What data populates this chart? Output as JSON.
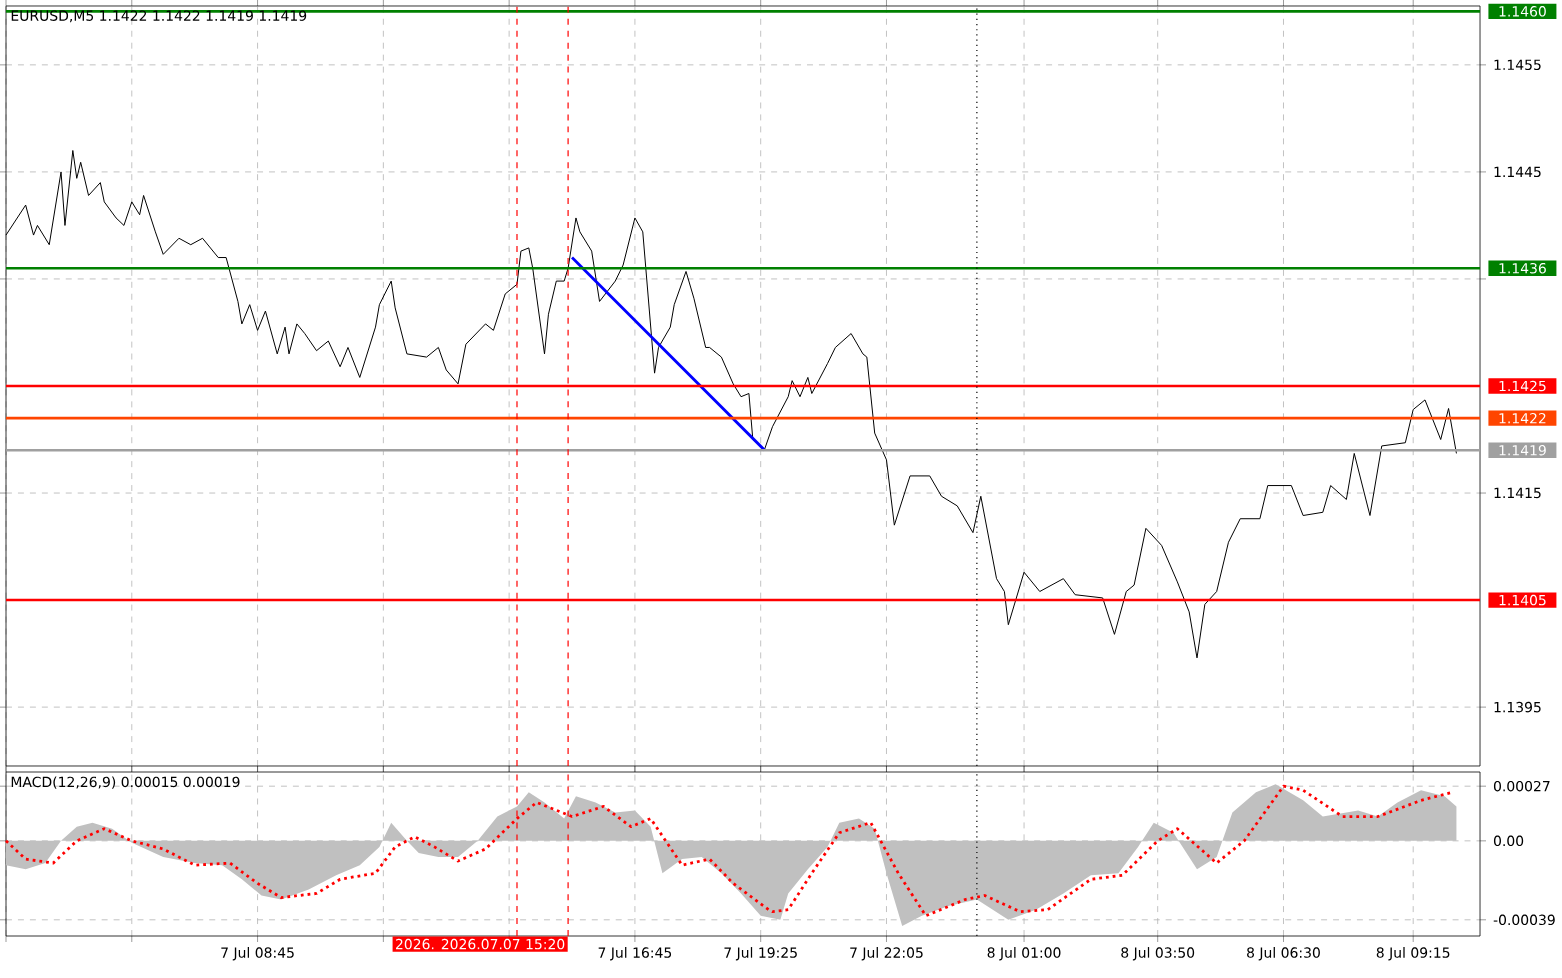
{
  "chart_data": [
    {
      "type": "line",
      "title": "EURUSD,M5 1.1422 1.1422 1.1419 1.1419",
      "xlim": [
        "2026-07-07T03:25",
        "2026-07-08T10:40"
      ],
      "ylim": [
        1.13895,
        1.14605
      ],
      "xticks": [
        {
          "value": "2026-07-07T03:25",
          "label": null
        },
        {
          "value": "2026-07-07T06:05",
          "label": null
        },
        {
          "value": "2026-07-07T08:45",
          "label": null
        },
        {
          "value": "2026-07-07T11:25",
          "label": null
        },
        {
          "value": "2026-07-07T14:05",
          "label": null
        },
        {
          "value": "2026-07-07T16:45",
          "label": null
        },
        {
          "value": "2026-07-07T19:25",
          "label": null
        },
        {
          "value": "2026-07-07T22:05",
          "label": null
        },
        {
          "value": "2026-07-08T01:00",
          "label": null
        },
        {
          "value": "2026-07-08T03:50",
          "label": null
        },
        {
          "value": "2026-07-08T06:30",
          "label": null
        },
        {
          "value": "2026-07-08T09:15",
          "label": null
        }
      ],
      "yticks": [
        1.1395,
        1.1415,
        {
          "value": 1.1435,
          "label": null
        },
        1.1445,
        1.1455
      ],
      "tick_labels": "y",
      "grid": true,
      "series": [
        {
          "color": "#000000",
          "x": [
            "2026-07-07T03:25",
            "2026-07-07T03:50",
            "2026-07-07T04:00",
            "2026-07-07T04:05",
            "2026-07-07T04:20",
            "2026-07-07T04:35",
            "2026-07-07T04:40",
            "2026-07-07T04:50",
            "2026-07-07T04:55",
            "2026-07-07T05:00",
            "2026-07-07T05:10",
            "2026-07-07T05:25",
            "2026-07-07T05:30",
            "2026-07-07T05:45",
            "2026-07-07T05:55",
            "2026-07-07T06:05",
            "2026-07-07T06:15",
            "2026-07-07T06:20",
            "2026-07-07T06:35",
            "2026-07-07T06:45",
            "2026-07-07T07:05",
            "2026-07-07T07:20",
            "2026-07-07T07:35",
            "2026-07-07T07:55",
            "2026-07-07T08:05",
            "2026-07-07T08:20",
            "2026-07-07T08:25",
            "2026-07-07T08:35",
            "2026-07-07T08:45",
            "2026-07-07T08:55",
            "2026-07-07T09:10",
            "2026-07-07T09:20",
            "2026-07-07T09:25",
            "2026-07-07T09:35",
            "2026-07-07T09:45",
            "2026-07-07T10:00",
            "2026-07-07T10:15",
            "2026-07-07T10:30",
            "2026-07-07T10:40",
            "2026-07-07T10:55",
            "2026-07-07T11:15",
            "2026-07-07T11:20",
            "2026-07-07T11:35",
            "2026-07-07T11:40",
            "2026-07-07T11:55",
            "2026-07-07T12:20",
            "2026-07-07T12:35",
            "2026-07-07T12:45",
            "2026-07-07T13:00",
            "2026-07-07T13:10",
            "2026-07-07T13:35",
            "2026-07-07T13:45",
            "2026-07-07T14:00",
            "2026-07-07T14:15",
            "2026-07-07T14:20",
            "2026-07-07T14:30",
            "2026-07-07T14:35",
            "2026-07-07T14:50",
            "2026-07-07T14:55",
            "2026-07-07T15:05",
            "2026-07-07T15:15",
            "2026-07-07T15:20",
            "2026-07-07T15:30",
            "2026-07-07T15:35",
            "2026-07-07T15:50",
            "2026-07-07T16:00",
            "2026-07-07T16:20",
            "2026-07-07T16:30",
            "2026-07-07T16:45",
            "2026-07-07T16:55",
            "2026-07-07T17:10",
            "2026-07-07T17:15",
            "2026-07-07T17:30",
            "2026-07-07T17:35",
            "2026-07-07T17:50",
            "2026-07-07T18:00",
            "2026-07-07T18:15",
            "2026-07-07T18:20",
            "2026-07-07T18:35",
            "2026-07-07T18:50",
            "2026-07-07T19:00",
            "2026-07-07T19:10",
            "2026-07-07T19:15",
            "2026-07-07T19:30",
            "2026-07-07T19:40",
            "2026-07-07T20:00",
            "2026-07-07T20:05",
            "2026-07-07T20:15",
            "2026-07-07T20:25",
            "2026-07-07T20:30",
            "2026-07-07T20:50",
            "2026-07-07T21:00",
            "2026-07-07T21:20",
            "2026-07-07T21:35",
            "2026-07-07T21:40",
            "2026-07-07T21:50",
            "2026-07-07T22:05",
            "2026-07-07T22:15",
            "2026-07-07T22:35",
            "2026-07-07T23:00",
            "2026-07-07T23:15",
            "2026-07-07T23:35",
            "2026-07-07T23:55",
            "2026-07-08T00:05",
            "2026-07-08T00:25",
            "2026-07-08T00:35",
            "2026-07-08T00:40",
            "2026-07-08T01:00",
            "2026-07-08T01:20",
            "2026-07-08T01:50",
            "2026-07-08T02:05",
            "2026-07-08T02:40",
            "2026-07-08T02:55",
            "2026-07-08T03:10",
            "2026-07-08T03:20",
            "2026-07-08T03:35",
            "2026-07-08T03:55",
            "2026-07-08T04:15",
            "2026-07-08T04:30",
            "2026-07-08T04:40",
            "2026-07-08T04:50",
            "2026-07-08T05:05",
            "2026-07-08T05:20",
            "2026-07-08T05:35",
            "2026-07-08T06:00",
            "2026-07-08T06:10",
            "2026-07-08T06:40",
            "2026-07-08T06:55",
            "2026-07-08T07:20",
            "2026-07-08T07:30",
            "2026-07-08T07:50",
            "2026-07-08T08:00",
            "2026-07-08T08:20",
            "2026-07-08T08:35",
            "2026-07-08T09:05",
            "2026-07-08T09:15",
            "2026-07-08T09:30",
            "2026-07-08T09:50",
            "2026-07-08T10:00",
            "2026-07-08T10:10"
          ],
          "values": [
            1.14391,
            1.14419,
            1.14391,
            1.144,
            1.14382,
            1.1445,
            1.144,
            1.1447,
            1.14444,
            1.14459,
            1.14428,
            1.1444,
            1.14422,
            1.14407,
            1.144,
            1.14422,
            1.1441,
            1.14428,
            1.14394,
            1.14373,
            1.14388,
            1.14382,
            1.14388,
            1.1437,
            1.1437,
            1.14329,
            1.14308,
            1.14326,
            1.14302,
            1.1432,
            1.1428,
            1.14305,
            1.1428,
            1.14308,
            1.14299,
            1.14283,
            1.14292,
            1.14268,
            1.14286,
            1.14258,
            1.14305,
            1.14326,
            1.14348,
            1.14323,
            1.1428,
            1.14277,
            1.14286,
            1.14265,
            1.14252,
            1.14289,
            1.14308,
            1.14302,
            1.14336,
            1.14345,
            1.14376,
            1.14379,
            1.1436,
            1.1428,
            1.14317,
            1.14348,
            1.14348,
            1.1436,
            1.14407,
            1.14394,
            1.14376,
            1.14329,
            1.14348,
            1.14363,
            1.14407,
            1.14394,
            1.14262,
            1.14286,
            1.14305,
            1.14326,
            1.14357,
            1.14332,
            1.14286,
            1.14286,
            1.14277,
            1.14252,
            1.1424,
            1.14243,
            1.142,
            1.14191,
            1.14212,
            1.1424,
            1.14255,
            1.1424,
            1.14258,
            1.14243,
            1.14271,
            1.14286,
            1.14299,
            1.1428,
            1.14277,
            1.14206,
            1.14181,
            1.1412,
            1.14166,
            1.14166,
            1.14147,
            1.14138,
            1.14113,
            1.14147,
            1.1407,
            1.14058,
            1.14027,
            1.14076,
            1.14058,
            1.1407,
            1.14055,
            1.14052,
            1.14018,
            1.14058,
            1.14064,
            1.14117,
            1.14101,
            1.14067,
            1.14039,
            1.13996,
            1.14046,
            1.14058,
            1.14104,
            1.14126,
            1.14126,
            1.14157,
            1.14157,
            1.14129,
            1.14132,
            1.14157,
            1.14144,
            1.14187,
            1.14129,
            1.14194,
            1.14197,
            1.14228,
            1.14237,
            1.142,
            1.14229,
            1.14187
          ]
        },
        {
          "type": "line",
          "color": "#0000ff",
          "x": [
            "2026-07-07T15:25",
            "2026-07-07T19:30"
          ],
          "values": [
            1.1437,
            1.1419
          ]
        }
      ],
      "ref_lines": [
        {
          "axis": "y",
          "value": 1.146,
          "label": "1.1460",
          "color": "#008000"
        },
        {
          "axis": "y",
          "value": 1.1436,
          "label": "1.1436",
          "color": "#008000"
        },
        {
          "axis": "y",
          "value": 1.1425,
          "label": "1.1425",
          "color": "#ff0000"
        },
        {
          "axis": "y",
          "value": 1.1422,
          "label": "1.1422",
          "color": "#ff4500"
        },
        {
          "axis": "y",
          "value": 1.1419,
          "label": "1.1419",
          "color": "#a0a0a0"
        },
        {
          "axis": "y",
          "value": 1.1405,
          "label": "1.1405",
          "color": "#ff0000"
        },
        {
          "axis": "x",
          "value": "2026-07-07T14:15",
          "color": "#ff0000",
          "line_style": "dashed"
        },
        {
          "axis": "x",
          "value": "2026-07-07T15:20",
          "color": "#ff0000",
          "line_style": "dashed"
        },
        {
          "axis": "x",
          "value": "2026-07-08T00:00",
          "color": "#000000",
          "line_style": "dotted"
        }
      ]
    },
    {
      "type": "area",
      "title": "MACD(12,26,9) 0.00015 0.00019",
      "xlim": [
        "2026-07-07T03:25",
        "2026-07-08T10:40"
      ],
      "ylim": [
        -0.00047,
        0.00034
      ],
      "xticks": [
        {
          "value": "2026-07-07T03:25",
          "label": null
        },
        {
          "value": "2026-07-07T06:05",
          "label": null
        },
        {
          "value": "2026-07-07T08:45",
          "label": "7 Jul 08:45"
        },
        {
          "value": "2026-07-07T11:25",
          "label": null
        },
        {
          "value": "2026-07-07T14:05",
          "label": null
        },
        {
          "value": "2026-07-07T16:45",
          "label": "7 Jul 16:45"
        },
        {
          "value": "2026-07-07T19:25",
          "label": "7 Jul 19:25"
        },
        {
          "value": "2026-07-07T22:05",
          "label": "7 Jul 22:05"
        },
        {
          "value": "2026-07-08T01:00",
          "label": "8 Jul 01:00"
        },
        {
          "value": "2026-07-08T03:50",
          "label": "8 Jul 03:50"
        },
        {
          "value": "2026-07-08T06:30",
          "label": "8 Jul 06:30"
        },
        {
          "value": "2026-07-08T09:15",
          "label": "8 Jul 09:15"
        }
      ],
      "yticks": [
        -0.00039,
        {
          "value": 0,
          "label": "0.00"
        },
        0.00027
      ],
      "grid": true,
      "series": [
        {
          "type": "area",
          "color": "#c0c0c0",
          "x": [
            "2026-07-07T03:25",
            "2026-07-07T03:50",
            "2026-07-07T04:15",
            "2026-07-07T04:35",
            "2026-07-07T04:55",
            "2026-07-07T05:15",
            "2026-07-07T05:40",
            "2026-07-07T06:05",
            "2026-07-07T06:45",
            "2026-07-07T07:25",
            "2026-07-07T08:00",
            "2026-07-07T08:25",
            "2026-07-07T08:50",
            "2026-07-07T09:15",
            "2026-07-07T09:50",
            "2026-07-07T10:25",
            "2026-07-07T10:55",
            "2026-07-07T11:20",
            "2026-07-07T11:35",
            "2026-07-07T11:55",
            "2026-07-07T12:10",
            "2026-07-07T12:35",
            "2026-07-07T13:00",
            "2026-07-07T13:25",
            "2026-07-07T13:50",
            "2026-07-07T14:15",
            "2026-07-07T14:30",
            "2026-07-07T14:50",
            "2026-07-07T15:15",
            "2026-07-07T15:30",
            "2026-07-07T15:55",
            "2026-07-07T16:20",
            "2026-07-07T16:45",
            "2026-07-07T17:05",
            "2026-07-07T17:20",
            "2026-07-07T17:45",
            "2026-07-07T18:10",
            "2026-07-07T18:35",
            "2026-07-07T19:00",
            "2026-07-07T19:25",
            "2026-07-07T19:50",
            "2026-07-07T20:00",
            "2026-07-07T20:25",
            "2026-07-07T20:50",
            "2026-07-07T21:05",
            "2026-07-07T21:30",
            "2026-07-07T21:50",
            "2026-07-07T22:05",
            "2026-07-07T22:25",
            "2026-07-07T22:50",
            "2026-07-07T23:25",
            "2026-07-08T00:00",
            "2026-07-08T00:40",
            "2026-07-08T01:15",
            "2026-07-08T01:50",
            "2026-07-08T02:25",
            "2026-07-08T03:00",
            "2026-07-08T03:25",
            "2026-07-08T03:45",
            "2026-07-08T04:10",
            "2026-07-08T04:40",
            "2026-07-08T05:05",
            "2026-07-08T05:25",
            "2026-07-08T05:55",
            "2026-07-08T06:20",
            "2026-07-08T06:55",
            "2026-07-08T07:20",
            "2026-07-08T08:05",
            "2026-07-08T08:30",
            "2026-07-08T08:55",
            "2026-07-08T09:25",
            "2026-07-08T09:55",
            "2026-07-08T10:10"
          ],
          "values": [
            -0.00012,
            -0.00014,
            -0.00011,
            0,
            7e-05,
            9e-05,
            6e-05,
            -1e-05,
            -8e-05,
            -0.00011,
            -0.00012,
            -0.00019,
            -0.00027,
            -0.00029,
            -0.00024,
            -0.00017,
            -0.00012,
            -3e-05,
            9e-05,
            0,
            -6e-05,
            -8e-05,
            -8e-05,
            0,
            0.00012,
            0.00017,
            0.00024,
            0.00019,
            0.00011,
            0.00022,
            0.00019,
            0.00014,
            0.00015,
            7e-05,
            -0.00016,
            -9e-05,
            -8e-05,
            -0.00016,
            -0.00026,
            -0.00037,
            -0.00039,
            -0.00026,
            -0.00014,
            -3e-05,
            9e-05,
            0.00011,
            6e-05,
            -0.00016,
            -0.00042,
            -0.00037,
            -0.00032,
            -0.00029,
            -0.00039,
            -0.00034,
            -0.00026,
            -0.00017,
            -0.00016,
            -3e-05,
            9e-05,
            4e-05,
            -0.00014,
            -8e-05,
            0.00014,
            0.00024,
            0.00028,
            0.0002,
            0.00012,
            0.00015,
            0.00012,
            0.00019,
            0.00025,
            0.00022,
            0.00017
          ]
        },
        {
          "type": "line",
          "color": "#ff0000",
          "line_style": "dotted",
          "x": [
            "2026-07-07T03:25",
            "2026-07-07T03:50",
            "2026-07-07T04:25",
            "2026-07-07T04:55",
            "2026-07-07T05:30",
            "2026-07-07T06:05",
            "2026-07-07T06:45",
            "2026-07-07T07:25",
            "2026-07-07T08:10",
            "2026-07-07T08:45",
            "2026-07-07T09:15",
            "2026-07-07T10:00",
            "2026-07-07T10:30",
            "2026-07-07T11:15",
            "2026-07-07T11:40",
            "2026-07-07T12:05",
            "2026-07-07T12:30",
            "2026-07-07T13:00",
            "2026-07-07T13:35",
            "2026-07-07T14:15",
            "2026-07-07T14:40",
            "2026-07-07T15:25",
            "2026-07-07T16:05",
            "2026-07-07T16:40",
            "2026-07-07T17:05",
            "2026-07-07T17:45",
            "2026-07-07T18:20",
            "2026-07-07T18:50",
            "2026-07-07T19:35",
            "2026-07-07T19:40",
            "2026-07-07T20:00",
            "2026-07-07T20:30",
            "2026-07-07T21:05",
            "2026-07-07T21:45",
            "2026-07-07T22:20",
            "2026-07-07T22:55",
            "2026-07-07T23:45",
            "2026-07-08T00:10",
            "2026-07-08T00:55",
            "2026-07-08T01:30",
            "2026-07-08T02:25",
            "2026-07-08T03:05",
            "2026-07-08T03:50",
            "2026-07-08T04:15",
            "2026-07-08T05:05",
            "2026-07-08T05:40",
            "2026-07-08T06:30",
            "2026-07-08T06:55",
            "2026-07-08T07:45",
            "2026-07-08T08:30",
            "2026-07-08T09:25",
            "2026-07-08T10:05"
          ],
          "values": [
            0,
            -9e-05,
            -0.00011,
            0,
            6e-05,
            0,
            -4e-05,
            -0.00012,
            -0.00011,
            -0.00021,
            -0.00028,
            -0.00026,
            -0.00019,
            -0.00016,
            -3e-05,
            2e-05,
            -3e-05,
            -0.0001,
            -4e-05,
            0.00011,
            0.00019,
            0.00012,
            0.00017,
            7e-05,
            0.00011,
            -0.00012,
            -9e-05,
            -0.00021,
            -0.00034,
            -0.00035,
            -0.00034,
            -0.00016,
            4e-05,
            9e-05,
            -0.00016,
            -0.00037,
            -0.00029,
            -0.00027,
            -0.00035,
            -0.00034,
            -0.00019,
            -0.00017,
            0,
            6e-05,
            -0.00011,
            0,
            0.00027,
            0.00025,
            0.00012,
            0.00012,
            0.0002,
            0.00024
          ]
        }
      ],
      "ref_lines": [
        {
          "axis": "x",
          "value": "2026-07-07T14:15",
          "color": "#ff0000",
          "line_style": "dashed"
        },
        {
          "axis": "x",
          "value": "2026-07-07T15:20",
          "label": "2026. 2026.07.07 15:20",
          "color": "#ff0000",
          "line_style": "dashed"
        },
        {
          "axis": "x",
          "value": "2026-07-08T00:00",
          "color": "#000000",
          "line_style": "dotted"
        }
      ]
    }
  ]
}
